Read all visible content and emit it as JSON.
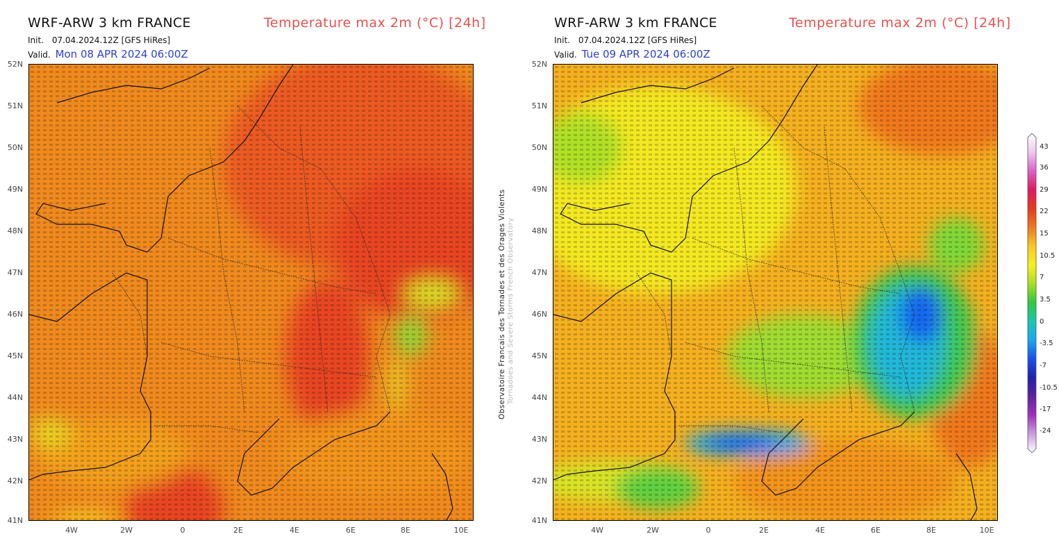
{
  "maps": [
    {
      "title": "WRF-ARW 3 km FRANCE",
      "parameter": "Temperature max 2m (°C) [24h]",
      "init_label": "Init.",
      "init_value": "07.04.2024.12Z [GFS HiRes]",
      "valid_label": "Valid.",
      "valid_value": "Mon 08 APR 2024 06:00Z"
    },
    {
      "title": "WRF-ARW 3 km FRANCE",
      "parameter": "Temperature max 2m (°C) [24h]",
      "init_label": "Init.",
      "init_value": "07.04.2024.12Z [GFS HiRes]",
      "valid_label": "Valid.",
      "valid_value": "Tue 09 APR 2024 06:00Z"
    }
  ],
  "lat_ticks": [
    "52N",
    "51N",
    "50N",
    "49N",
    "48N",
    "47N",
    "46N",
    "45N",
    "44N",
    "43N",
    "42N",
    "41N"
  ],
  "lon_ticks": [
    "4W",
    "2W",
    "0",
    "2E",
    "4E",
    "6E",
    "8E",
    "10E"
  ],
  "credit_line1": "Observatoire Francais des Tornades et des Orages Violents",
  "credit_line2": "Tornadoes and Severe Storms French Observatory",
  "colorbar": {
    "labels": [
      "43",
      "36",
      "29",
      "22",
      "15",
      "10.5",
      "7",
      "3.5",
      "0",
      "-3.5",
      "-7",
      "-10.5",
      "-17",
      "-24"
    ],
    "colors": [
      "#ffffff",
      "#f0c8f0",
      "#e060c8",
      "#e01860",
      "#e83a1e",
      "#f0781e",
      "#f8c820",
      "#f8f020",
      "#a8e020",
      "#30c840",
      "#18c8b0",
      "#18a8f0",
      "#1850f0",
      "#2020b0",
      "#6020a0",
      "#a030c0",
      "#c8a0e0",
      "#ffffff"
    ]
  }
}
